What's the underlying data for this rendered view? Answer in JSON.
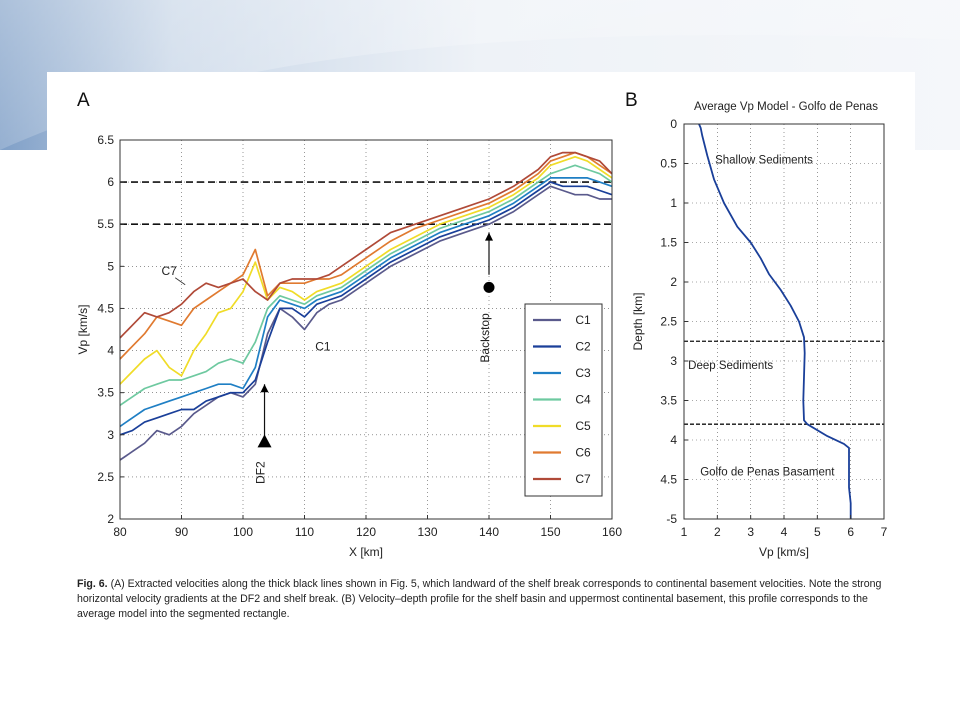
{
  "panels": {
    "a": "A",
    "b": "B"
  },
  "caption": {
    "label": "Fig. 6.",
    "text": "(A) Extracted velocities along the thick black lines shown in Fig. 5, which landward of the shelf break corresponds to continental basement velocities. Note the strong horizontal velocity gradients at the DF2 and shelf break. (B) Velocity–depth profile for the shelf basin and uppermost continental basement, this profile corresponds to the average model into the segmented rectangle."
  },
  "chart_data": [
    {
      "type": "line",
      "xlabel": "X [km]",
      "ylabel": "Vp [km/s]",
      "xlim": [
        80,
        160
      ],
      "ylim": [
        2,
        6.5
      ],
      "xticks": [
        80,
        90,
        100,
        110,
        120,
        130,
        140,
        150,
        160
      ],
      "yticks": [
        2,
        2.5,
        3,
        3.5,
        4,
        4.5,
        5,
        5.5,
        6,
        6.5
      ],
      "grid": true,
      "legend": "right",
      "hlines": [
        5.5,
        6.0
      ],
      "x": [
        80,
        82,
        84,
        86,
        88,
        90,
        92,
        94,
        96,
        98,
        100,
        102,
        104,
        106,
        108,
        110,
        112,
        114,
        116,
        118,
        120,
        124,
        128,
        132,
        136,
        140,
        144,
        148,
        150,
        152,
        154,
        156,
        158,
        160
      ],
      "series": [
        {
          "name": "C1",
          "color": "#5a5a8c",
          "values": [
            2.7,
            2.8,
            2.9,
            3.05,
            3.0,
            3.1,
            3.25,
            3.35,
            3.45,
            3.5,
            3.45,
            3.6,
            4.2,
            4.5,
            4.4,
            4.25,
            4.45,
            4.55,
            4.6,
            4.7,
            4.8,
            5.0,
            5.15,
            5.3,
            5.4,
            5.5,
            5.65,
            5.85,
            5.95,
            5.9,
            5.85,
            5.85,
            5.8,
            5.8
          ]
        },
        {
          "name": "C2",
          "color": "#1a3f99",
          "values": [
            3.0,
            3.05,
            3.15,
            3.2,
            3.25,
            3.3,
            3.3,
            3.4,
            3.45,
            3.5,
            3.5,
            3.65,
            4.1,
            4.5,
            4.5,
            4.4,
            4.55,
            4.6,
            4.65,
            4.75,
            4.85,
            5.05,
            5.2,
            5.35,
            5.45,
            5.55,
            5.7,
            5.9,
            6.0,
            5.95,
            5.95,
            5.95,
            5.9,
            5.85
          ]
        },
        {
          "name": "C3",
          "color": "#1f7fc4",
          "values": [
            3.1,
            3.2,
            3.3,
            3.35,
            3.4,
            3.45,
            3.5,
            3.55,
            3.6,
            3.6,
            3.55,
            3.8,
            4.4,
            4.6,
            4.55,
            4.5,
            4.6,
            4.65,
            4.7,
            4.8,
            4.9,
            5.1,
            5.25,
            5.4,
            5.5,
            5.6,
            5.75,
            5.95,
            6.05,
            6.05,
            6.05,
            6.05,
            6.0,
            5.95
          ]
        },
        {
          "name": "C4",
          "color": "#6ec9a0",
          "values": [
            3.35,
            3.45,
            3.55,
            3.6,
            3.65,
            3.65,
            3.7,
            3.75,
            3.85,
            3.9,
            3.85,
            4.1,
            4.5,
            4.65,
            4.6,
            4.55,
            4.65,
            4.7,
            4.75,
            4.85,
            4.95,
            5.15,
            5.3,
            5.45,
            5.55,
            5.65,
            5.8,
            6.0,
            6.1,
            6.15,
            6.2,
            6.15,
            6.1,
            6.0
          ]
        },
        {
          "name": "C5",
          "color": "#f0dc28",
          "values": [
            3.6,
            3.75,
            3.9,
            4.0,
            3.8,
            3.7,
            4.0,
            4.2,
            4.45,
            4.5,
            4.7,
            5.05,
            4.6,
            4.75,
            4.7,
            4.6,
            4.7,
            4.75,
            4.8,
            4.9,
            5.0,
            5.2,
            5.35,
            5.5,
            5.6,
            5.7,
            5.85,
            6.05,
            6.2,
            6.25,
            6.3,
            6.25,
            6.15,
            6.05
          ]
        },
        {
          "name": "C6",
          "color": "#e07a30",
          "values": [
            3.9,
            4.05,
            4.2,
            4.4,
            4.35,
            4.3,
            4.5,
            4.6,
            4.7,
            4.8,
            4.9,
            5.2,
            4.65,
            4.8,
            4.8,
            4.8,
            4.85,
            4.85,
            4.9,
            5.0,
            5.1,
            5.3,
            5.45,
            5.55,
            5.65,
            5.75,
            5.9,
            6.1,
            6.25,
            6.3,
            6.35,
            6.3,
            6.2,
            6.1
          ]
        },
        {
          "name": "C7",
          "color": "#b04a38",
          "values": [
            4.15,
            4.3,
            4.45,
            4.4,
            4.45,
            4.55,
            4.7,
            4.8,
            4.75,
            4.8,
            4.85,
            4.7,
            4.6,
            4.8,
            4.85,
            4.85,
            4.85,
            4.9,
            5.0,
            5.1,
            5.2,
            5.4,
            5.5,
            5.6,
            5.7,
            5.8,
            5.95,
            6.15,
            6.3,
            6.35,
            6.35,
            6.3,
            6.25,
            6.1
          ]
        }
      ],
      "annotations": [
        {
          "text": "C7",
          "x": 88,
          "y": 4.9
        },
        {
          "text": "C1",
          "x": 113,
          "y": 4.0
        },
        {
          "text": "DF2",
          "x": 103.5,
          "y": 2.55,
          "marker": "triangle"
        },
        {
          "text": "Backstop",
          "x": 140,
          "y": 4.15,
          "marker": "circle"
        }
      ]
    },
    {
      "type": "line",
      "title": "Average Vp Model - Golfo de Penas",
      "xlabel": "Vp [km/s]",
      "ylabel": "Depth [km]",
      "xlim": [
        1,
        7
      ],
      "ylim": [
        0,
        5
      ],
      "xticks": [
        1,
        2,
        3,
        4,
        5,
        6,
        7
      ],
      "yticks": [
        "0",
        "0.5",
        "1",
        "1.5",
        "2",
        "2.5",
        "3",
        "3.5",
        "4",
        "4.5",
        "-5"
      ],
      "grid": true,
      "hlines": [
        2.75,
        3.8
      ],
      "color": "#1a3f99",
      "vp": [
        1.45,
        1.5,
        1.55,
        1.7,
        1.9,
        2.2,
        2.6,
        3.0,
        3.3,
        3.55,
        3.9,
        4.2,
        4.45,
        4.6,
        4.62,
        4.6,
        4.58,
        4.6,
        4.7,
        5.3,
        5.8,
        5.95,
        5.95,
        5.95,
        6.0,
        6.0
      ],
      "depth": [
        0,
        0.05,
        0.15,
        0.4,
        0.7,
        1.0,
        1.3,
        1.5,
        1.7,
        1.9,
        2.1,
        2.3,
        2.5,
        2.7,
        2.9,
        3.2,
        3.5,
        3.75,
        3.8,
        3.95,
        4.05,
        4.1,
        4.3,
        4.6,
        4.8,
        5.0
      ],
      "annotations": [
        {
          "text": "Shallow Sediments",
          "vp": 3.4,
          "depth": 0.5
        },
        {
          "text": "Deep Sediments",
          "vp": 2.4,
          "depth": 3.1
        },
        {
          "text": "Golfo de Penas Basament",
          "vp": 3.5,
          "depth": 4.45
        }
      ]
    }
  ]
}
